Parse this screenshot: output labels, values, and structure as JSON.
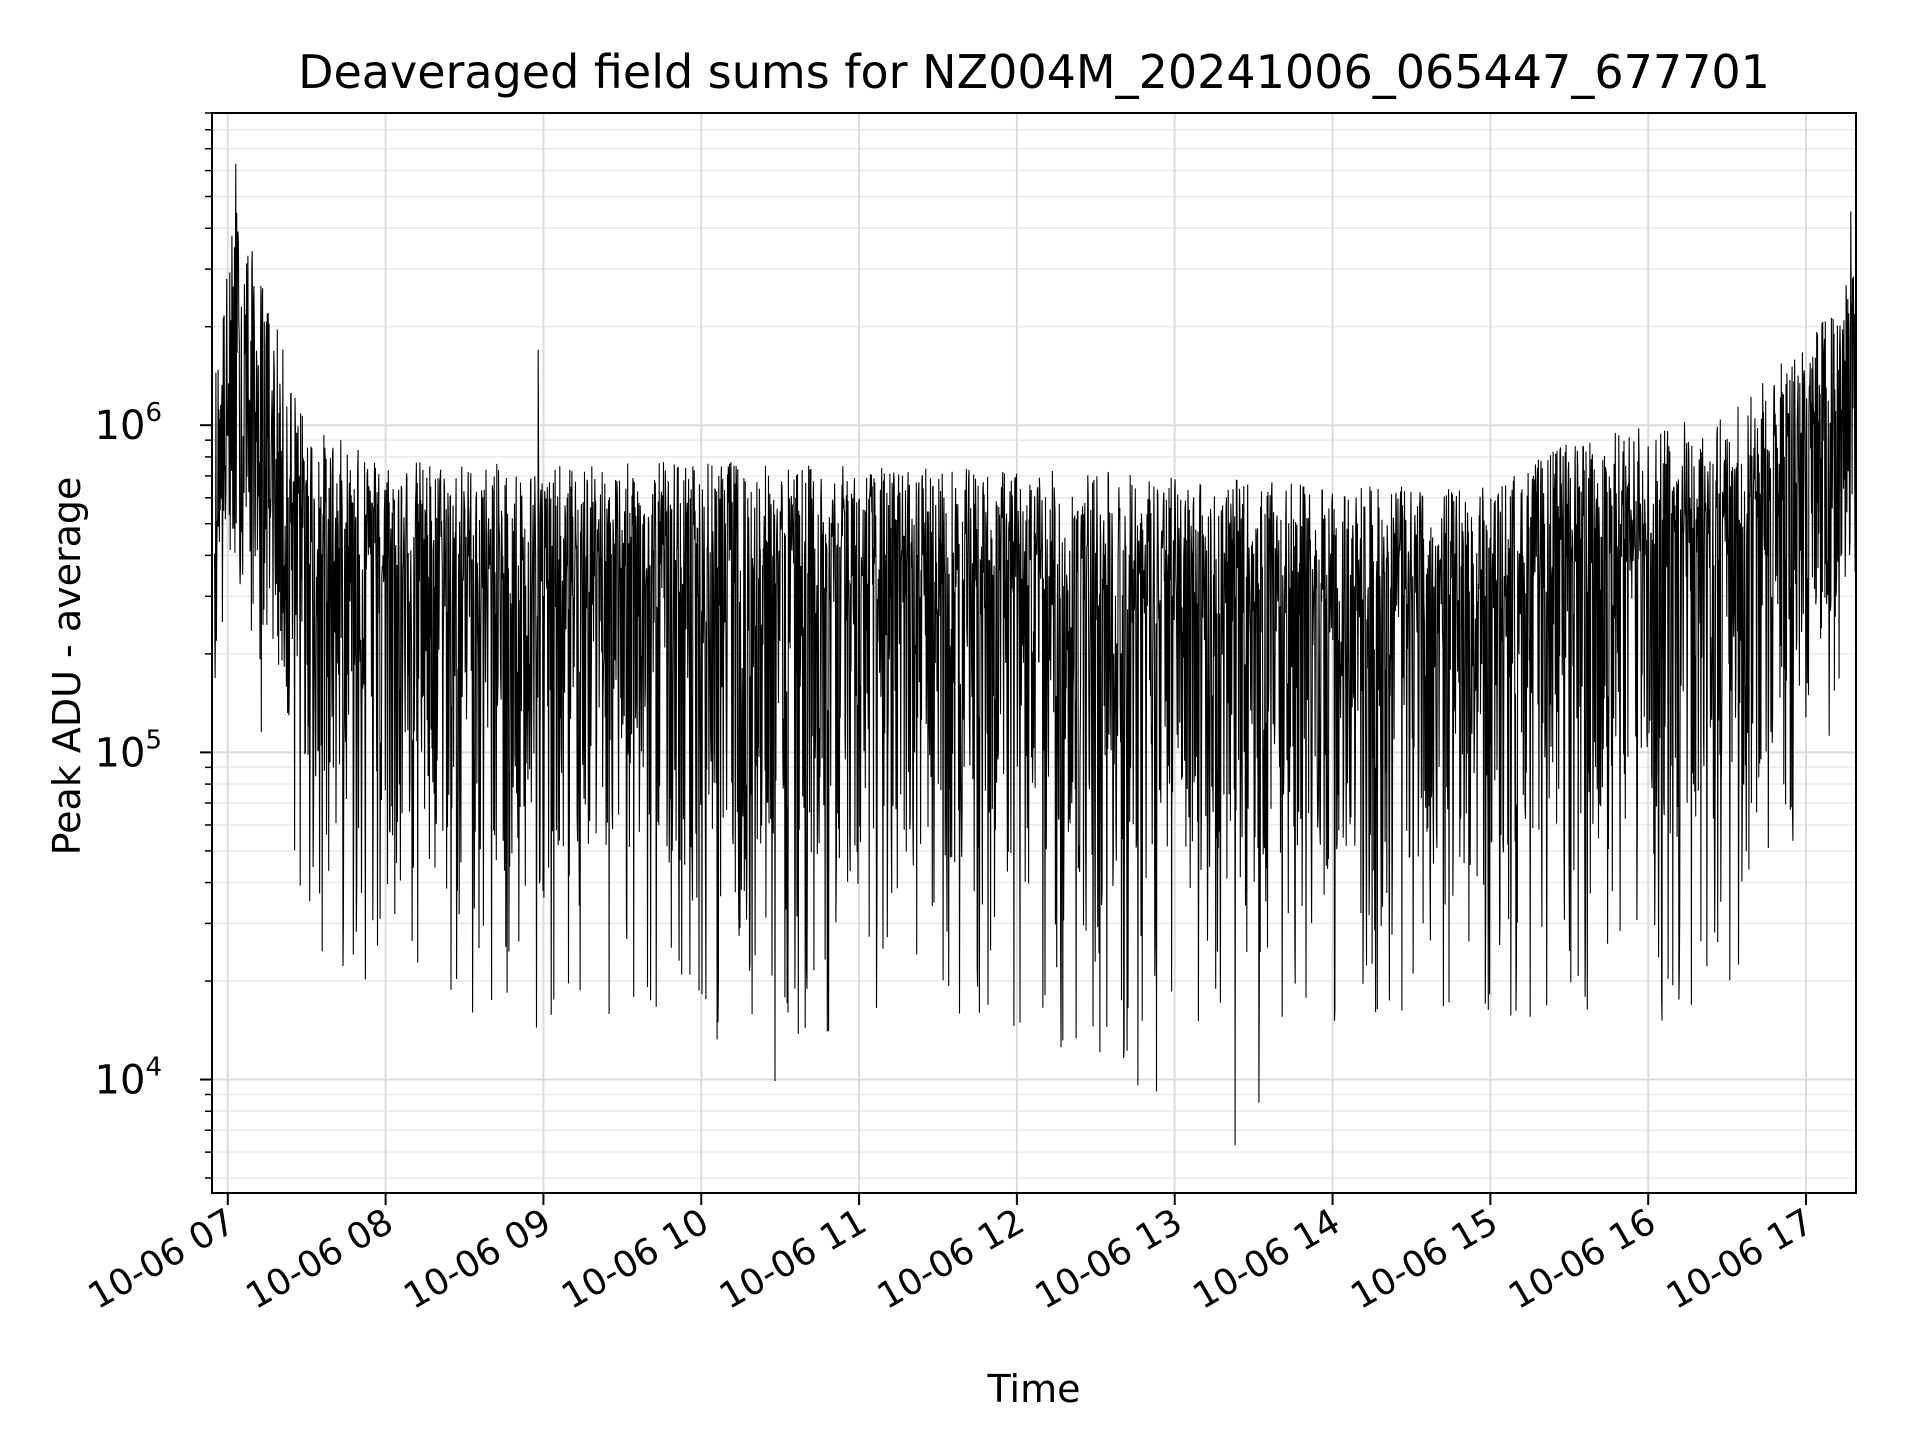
{
  "chart_data": {
    "type": "line",
    "title": "Deaveraged field sums for NZ004M_20241006_065447_677701",
    "xlabel": "Time",
    "ylabel": "Peak ADU - average",
    "yscale": "log",
    "ylim": [
      4500,
      9000000
    ],
    "xlim": [
      "2024-10-06 06:54",
      "2024-10-06 17:19"
    ],
    "grid": true,
    "x_ticks": [
      "10-06 07",
      "10-06 08",
      "10-06 09",
      "10-06 10",
      "10-06 11",
      "10-06 12",
      "10-06 13",
      "10-06 14",
      "10-06 15",
      "10-06 16",
      "10-06 17"
    ],
    "y_ticks": [
      {
        "value": 10000,
        "base": "10",
        "exp": "4"
      },
      {
        "value": 100000,
        "base": "10",
        "exp": "5"
      },
      {
        "value": 1000000,
        "base": "10",
        "exp": "6"
      }
    ],
    "series": [
      {
        "color": "#000000",
        "envelope_time": [
          "2024-10-06 06:55",
          "2024-10-06 07:03",
          "2024-10-06 07:15",
          "2024-10-06 07:30",
          "2024-10-06 08:00",
          "2024-10-06 09:00",
          "2024-10-06 10:00",
          "2024-10-06 11:00",
          "2024-10-06 12:00",
          "2024-10-06 12:45",
          "2024-10-06 13:00",
          "2024-10-06 14:00",
          "2024-10-06 15:00",
          "2024-10-06 15:30",
          "2024-10-06 16:00",
          "2024-10-06 16:30",
          "2024-10-06 17:00",
          "2024-10-06 17:19"
        ],
        "envelope_high": [
          1500000,
          5000000,
          2500000,
          1000000,
          800000,
          750000,
          780000,
          750000,
          730000,
          720000,
          700000,
          650000,
          650000,
          900000,
          1000000,
          1100000,
          1800000,
          3000000
        ],
        "envelope_typical": [
          600000,
          1200000,
          800000,
          420000,
          330000,
          300000,
          290000,
          290000,
          290000,
          260000,
          270000,
          250000,
          270000,
          350000,
          380000,
          420000,
          700000,
          1200000
        ],
        "envelope_low": [
          70000,
          150000,
          100000,
          25000,
          18000,
          14000,
          13000,
          14000,
          13000,
          9500,
          15000,
          14000,
          14000,
          16000,
          14000,
          18000,
          45000,
          150000
        ],
        "extremes": [
          {
            "time": "2024-10-06 07:03",
            "value": 6300000
          },
          {
            "time": "2024-10-06 08:58",
            "value": 1700000
          },
          {
            "time": "2024-10-06 10:28",
            "value": 9900
          },
          {
            "time": "2024-10-06 12:46",
            "value": 9600
          },
          {
            "time": "2024-10-06 12:53",
            "value": 9200
          },
          {
            "time": "2024-10-06 13:23",
            "value": 6300
          },
          {
            "time": "2024-10-06 13:32",
            "value": 8500
          },
          {
            "time": "2024-10-06 17:17",
            "value": 4500000
          }
        ]
      }
    ]
  }
}
